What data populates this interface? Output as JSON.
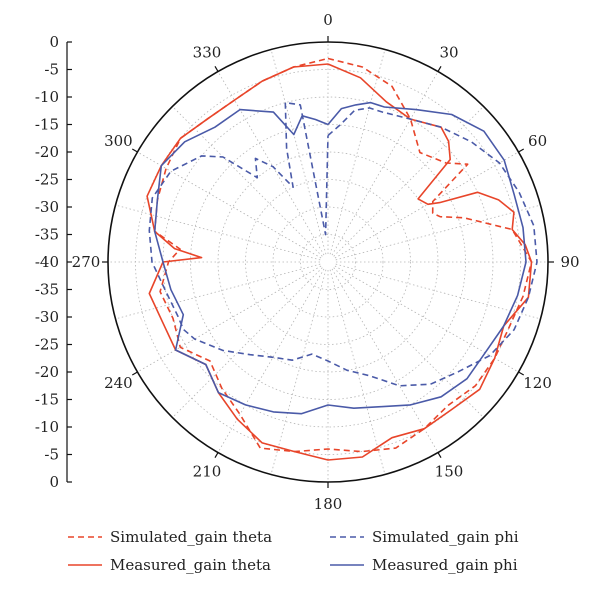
{
  "chart_data": {
    "type": "polar-line",
    "radial_axis": {
      "range": [
        -40,
        0
      ],
      "ticks": [
        0,
        -5,
        -10,
        -15,
        -20,
        -25,
        -30,
        -35,
        -40,
        -35,
        -30,
        -25,
        -20,
        -15,
        -10,
        -5,
        0
      ]
    },
    "angle_labels": [
      "0",
      "30",
      "60",
      "90",
      "120",
      "150",
      "180",
      "210",
      "240",
      "270",
      "300",
      "330"
    ],
    "angle_ticks": [
      0,
      30,
      60,
      90,
      120,
      150,
      180,
      210,
      240,
      270,
      300,
      330
    ],
    "grid": true,
    "legend": {
      "placement": "bottom",
      "columns": 2
    },
    "series": [
      {
        "name": "Simulated_gain theta",
        "color": "#e8452a",
        "dash": true,
        "angles": [
          0,
          10,
          20,
          30,
          40,
          50,
          55,
          60,
          65,
          68,
          72,
          80,
          90,
          100,
          110,
          120,
          130,
          140,
          150,
          160,
          170,
          180,
          190,
          200,
          210,
          220,
          230,
          240,
          250,
          260,
          270,
          275,
          280,
          290,
          300,
          310,
          320,
          330,
          340,
          350,
          360
        ],
        "values": [
          -3,
          -4,
          -6,
          -10,
          -14,
          -12,
          -9,
          -18,
          -19,
          -18,
          -14,
          -6,
          -3,
          -4,
          -5,
          -5,
          -5,
          -6,
          -5,
          -4,
          -5,
          -6,
          -5,
          -4,
          -8,
          -10,
          -12,
          -9,
          -10,
          -9,
          -11,
          -13,
          -8,
          -7,
          -6,
          -5,
          -6,
          -6,
          -5,
          -4,
          -3
        ]
      },
      {
        "name": "Measured_gain theta",
        "color": "#e8452a",
        "dash": false,
        "angles": [
          0,
          10,
          20,
          30,
          40,
          45,
          50,
          55,
          60,
          62,
          65,
          70,
          75,
          80,
          85,
          90,
          100,
          110,
          120,
          130,
          140,
          150,
          160,
          170,
          180,
          190,
          200,
          210,
          220,
          230,
          240,
          250,
          260,
          270,
          272,
          275,
          280,
          290,
          300,
          310,
          320,
          330,
          340,
          350,
          360
        ],
        "values": [
          -4,
          -6,
          -9,
          -10,
          -8,
          -9,
          -11,
          -20,
          -19,
          -17,
          -10,
          -7,
          -5,
          -6,
          -4,
          -3,
          -3,
          -6,
          -5,
          -4,
          -5,
          -5,
          -6,
          -4,
          -4,
          -5,
          -5,
          -7,
          -9,
          -11,
          -8,
          -8,
          -7,
          -10,
          -17,
          -12,
          -8,
          -5,
          -5,
          -5,
          -6,
          -6,
          -5,
          -4,
          -4
        ]
      },
      {
        "name": "Simulated_gain phi",
        "color": "#4a5aa8",
        "dash": true,
        "angles": [
          0,
          5,
          10,
          15,
          20,
          30,
          40,
          50,
          60,
          70,
          80,
          90,
          100,
          110,
          120,
          130,
          140,
          150,
          160,
          170,
          180,
          190,
          200,
          210,
          220,
          230,
          240,
          245,
          250,
          260,
          270,
          280,
          290,
          300,
          310,
          315,
          320,
          325,
          330,
          335,
          340,
          345,
          350,
          355,
          360
        ],
        "values": [
          -17,
          -15,
          -12,
          -11,
          -11,
          -10,
          -8,
          -6,
          -4,
          -3,
          -2,
          -2,
          -3,
          -4,
          -6,
          -9,
          -11,
          -14,
          -18,
          -20,
          -22,
          -23,
          -21,
          -20,
          -18,
          -15,
          -12,
          -11,
          -11,
          -10,
          -8,
          -7,
          -6,
          -7,
          -10,
          -13,
          -20,
          -17,
          -20,
          -25,
          -18,
          -10,
          -11,
          -35,
          -17
        ]
      },
      {
        "name": "Measured_gain phi",
        "color": "#4a5aa8",
        "dash": false,
        "angles": [
          0,
          5,
          10,
          15,
          20,
          30,
          40,
          50,
          60,
          70,
          80,
          90,
          100,
          110,
          120,
          130,
          140,
          150,
          160,
          170,
          180,
          190,
          200,
          210,
          220,
          230,
          240,
          250,
          260,
          270,
          280,
          290,
          300,
          310,
          320,
          330,
          340,
          345,
          350,
          355,
          360
        ],
        "values": [
          -15,
          -12,
          -11,
          -10,
          -10,
          -8,
          -5,
          -3,
          -3,
          -4,
          -4,
          -4,
          -5,
          -6,
          -7,
          -7,
          -8,
          -10,
          -12,
          -13,
          -14,
          -12,
          -11,
          -10,
          -9,
          -11,
          -8,
          -12,
          -11,
          -10,
          -8,
          -7,
          -5,
          -6,
          -8,
          -8,
          -11,
          -16,
          -13,
          -14,
          -15
        ]
      }
    ]
  }
}
